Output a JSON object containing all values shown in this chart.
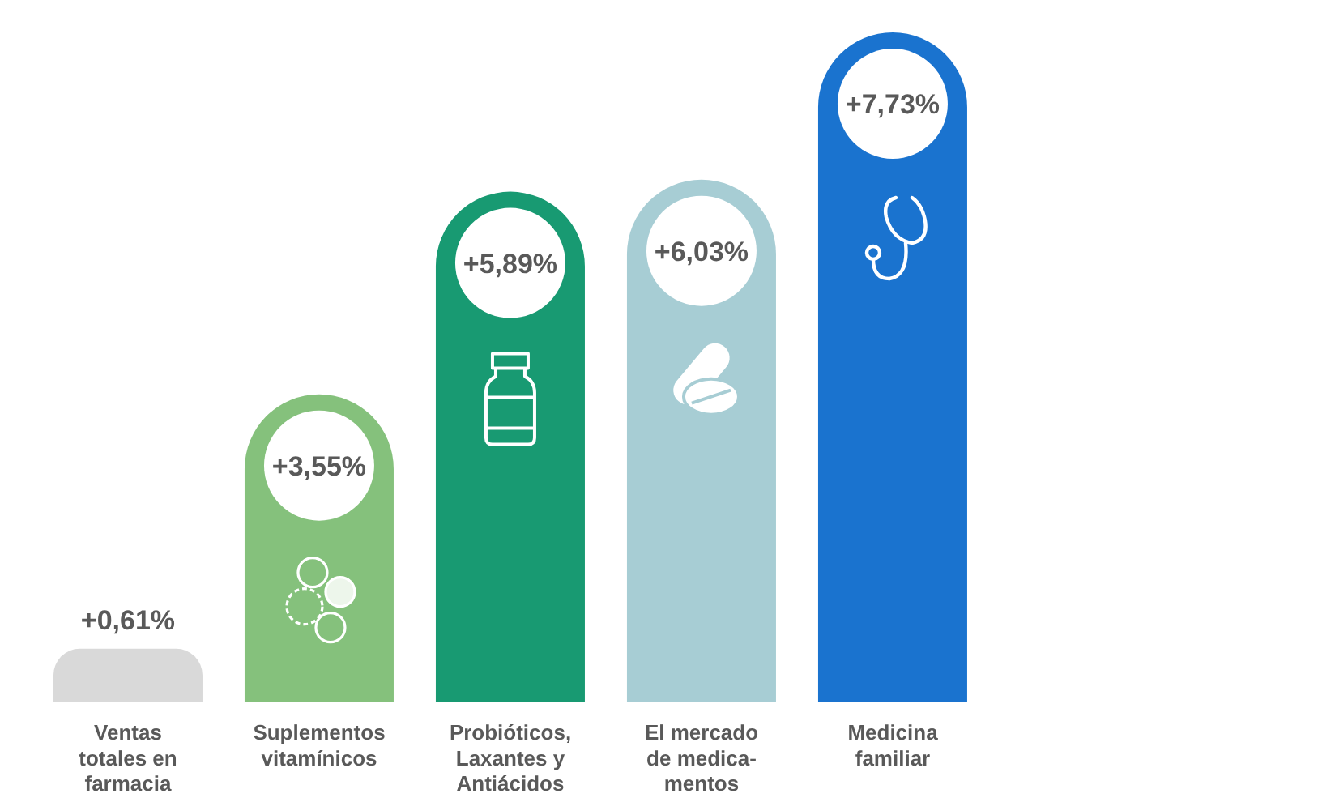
{
  "chart_data": {
    "type": "bar",
    "categories": [
      "Ventas\ntotales en\nfarmacia",
      "Suplementos\nvitamínicos",
      "Probióticos,\nLaxantes y\nAntiácidos",
      "El mercado\nde medica-\nmentos",
      "Medicina\nfamiliar"
    ],
    "values": [
      0.61,
      3.55,
      5.89,
      6.03,
      7.73
    ],
    "colors": [
      "#d9d9d9",
      "#85c17c",
      "#189a72",
      "#a7cdd4",
      "#1a73cf"
    ],
    "value_labels": [
      "+0,61%",
      "+3,55%",
      "+5,89%",
      "+6,03%",
      "+7,73%"
    ],
    "tick_labels": "x"
  }
}
